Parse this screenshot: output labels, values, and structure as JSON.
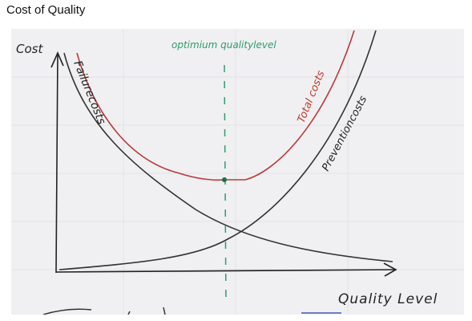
{
  "page": {
    "title": "Cost of Quality"
  },
  "diagram": {
    "y_axis_label": "Cost",
    "x_axis_label": "Quality Level",
    "optimum_label": "optimium qualitylevel",
    "failure_costs_label": "Failurecosts",
    "total_costs_label": "Total costs",
    "prevention_costs_label": "Preventioncosts",
    "colors": {
      "paper": "#f0f0f2",
      "ink": "#222222",
      "total_curve": "#b83a3a",
      "total_label": "#c0392b",
      "optimum_line": "#2e9c6a",
      "bottom_scribble_blue": "#4455bb"
    }
  }
}
